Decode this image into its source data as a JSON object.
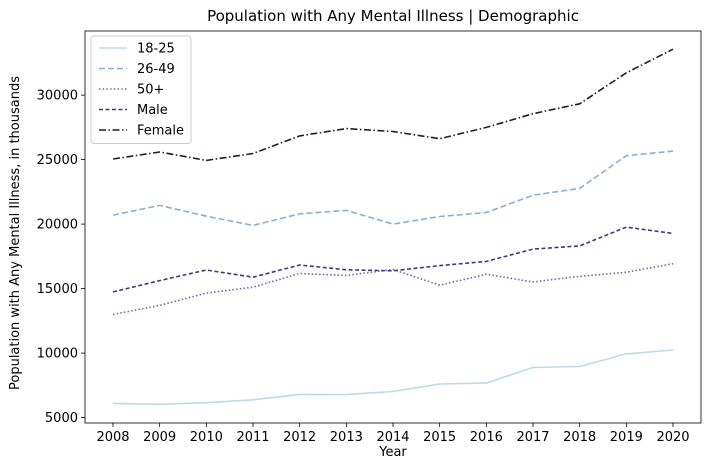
{
  "chart_data": {
    "type": "line",
    "title": "Population with Any Mental Illness | Demographic",
    "xlabel": "Year",
    "ylabel": "Population with Any Mental Illness, in thousands",
    "x": [
      2008,
      2009,
      2010,
      2011,
      2012,
      2013,
      2014,
      2015,
      2016,
      2017,
      2018,
      2019,
      2020
    ],
    "xlim": [
      2007.4,
      2020.6
    ],
    "ylim": [
      4580,
      34970
    ],
    "yticks": [
      5000,
      10000,
      15000,
      20000,
      25000,
      30000
    ],
    "grid": false,
    "legend_position": "top-left",
    "series": [
      {
        "name": "18-25",
        "color": "#bcdbe6",
        "dash": "solid",
        "values": [
          6100,
          6030,
          6150,
          6380,
          6800,
          6780,
          7020,
          7600,
          7670,
          8880,
          8960,
          9940,
          10240
        ]
      },
      {
        "name": "26-49",
        "color": "#8ab0cf",
        "dash": "dashed",
        "values": [
          20700,
          21450,
          20610,
          19900,
          20800,
          21060,
          20000,
          20590,
          20900,
          22240,
          22770,
          25300,
          25660
        ]
      },
      {
        "name": "50+",
        "color": "#5b6fb0",
        "dash": "dotted",
        "values": [
          13000,
          13700,
          14650,
          15110,
          16170,
          16020,
          16480,
          15260,
          16110,
          15510,
          15950,
          16260,
          16930
        ]
      },
      {
        "name": "Male",
        "color": "#3d3b7c",
        "dash": "longdash",
        "values": [
          14740,
          15620,
          16440,
          15880,
          16830,
          16460,
          16380,
          16780,
          17110,
          18060,
          18310,
          19770,
          19270
        ]
      },
      {
        "name": "Female",
        "color": "#1e1c35",
        "dash": "dashdot",
        "values": [
          25050,
          25590,
          24940,
          25470,
          26840,
          27400,
          27180,
          26620,
          27500,
          28560,
          29330,
          31730,
          33560
        ]
      }
    ]
  }
}
